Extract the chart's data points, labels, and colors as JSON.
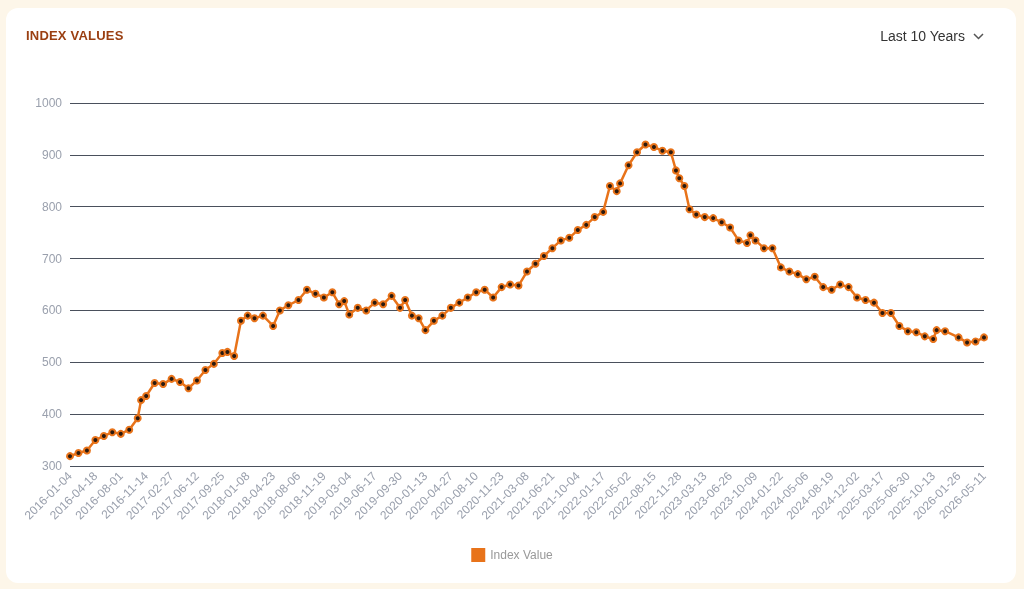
{
  "chart_data": {
    "type": "line",
    "title": "INDEX VALUES",
    "annotations": [
      "Last 10 Years"
    ],
    "x": [
      "2016-01-04",
      "2016-02-08",
      "2016-03-14",
      "2016-04-18",
      "2016-05-23",
      "2016-06-27",
      "2016-08-01",
      "2016-09-05",
      "2016-10-10",
      "2016-10-24",
      "2016-11-14",
      "2016-12-19",
      "2017-01-23",
      "2017-02-27",
      "2017-04-03",
      "2017-05-08",
      "2017-06-12",
      "2017-07-17",
      "2017-08-21",
      "2017-09-25",
      "2017-10-16",
      "2017-11-13",
      "2017-12-11",
      "2018-01-08",
      "2018-02-05",
      "2018-03-12",
      "2018-04-23",
      "2018-05-21",
      "2018-06-25",
      "2018-08-06",
      "2018-09-10",
      "2018-10-15",
      "2018-11-19",
      "2018-12-24",
      "2019-01-21",
      "2019-02-11",
      "2019-03-04",
      "2019-04-08",
      "2019-05-13",
      "2019-06-17",
      "2019-07-22",
      "2019-08-26",
      "2019-09-30",
      "2019-10-21",
      "2019-11-18",
      "2019-12-16",
      "2020-01-13",
      "2020-02-17",
      "2020-03-23",
      "2020-04-27",
      "2020-06-01",
      "2020-07-06",
      "2020-08-10",
      "2020-09-14",
      "2020-10-19",
      "2020-11-23",
      "2020-12-28",
      "2021-02-01",
      "2021-03-08",
      "2021-04-12",
      "2021-05-17",
      "2021-06-21",
      "2021-07-26",
      "2021-08-30",
      "2021-10-04",
      "2021-11-08",
      "2021-12-13",
      "2022-01-17",
      "2022-02-14",
      "2022-03-14",
      "2022-03-28",
      "2022-05-02",
      "2022-06-06",
      "2022-07-11",
      "2022-08-15",
      "2022-09-19",
      "2022-10-24",
      "2022-11-14",
      "2022-11-28",
      "2022-12-19",
      "2023-01-09",
      "2023-02-06",
      "2023-03-13",
      "2023-04-17",
      "2023-05-22",
      "2023-06-26",
      "2023-07-31",
      "2023-09-04",
      "2023-09-18",
      "2023-10-09",
      "2023-11-13",
      "2023-12-18",
      "2024-01-22",
      "2024-02-26",
      "2024-04-01",
      "2024-05-06",
      "2024-06-10",
      "2024-07-15",
      "2024-08-19",
      "2024-09-23",
      "2024-10-28",
      "2024-12-02",
      "2025-01-06",
      "2025-02-10",
      "2025-03-17",
      "2025-04-21",
      "2025-05-26",
      "2025-06-30",
      "2025-08-04",
      "2025-09-08",
      "2025-10-13",
      "2025-10-27",
      "2025-12-01",
      "2026-01-26",
      "2026-03-02",
      "2026-04-06",
      "2026-05-11"
    ],
    "series": [
      {
        "name": "Index Value",
        "color": "#e8731a",
        "values": [
          319,
          325,
          330,
          350,
          358,
          365,
          362,
          370,
          392,
          427,
          435,
          460,
          458,
          468,
          462,
          450,
          465,
          485,
          497,
          518,
          520,
          512,
          580,
          590,
          585,
          590,
          570,
          600,
          610,
          620,
          640,
          632,
          625,
          635,
          612,
          618,
          592,
          605,
          600,
          615,
          612,
          628,
          605,
          620,
          590,
          585,
          562,
          580,
          590,
          605,
          615,
          625,
          635,
          640,
          625,
          645,
          650,
          648,
          675,
          690,
          705,
          720,
          735,
          740,
          755,
          765,
          780,
          790,
          840,
          830,
          845,
          880,
          905,
          920,
          915,
          908,
          905,
          870,
          855,
          840,
          795,
          785,
          780,
          778,
          770,
          760,
          735,
          730,
          745,
          735,
          720,
          720,
          683,
          675,
          670,
          660,
          665,
          645,
          640,
          650,
          645,
          625,
          620,
          615,
          595,
          595,
          570,
          560,
          558,
          550,
          545,
          562,
          560,
          548,
          538,
          540,
          548
        ]
      }
    ],
    "xlim": [
      "2016-01-04",
      "2026-05-11"
    ],
    "xticks": [
      "2016-01-04",
      "2016-04-18",
      "2016-08-01",
      "2016-11-14",
      "2017-02-27",
      "2017-06-12",
      "2017-09-25",
      "2018-01-08",
      "2018-04-23",
      "2018-08-06",
      "2018-11-19",
      "2019-03-04",
      "2019-06-17",
      "2019-09-30",
      "2020-01-13",
      "2020-04-27",
      "2020-08-10",
      "2020-11-23",
      "2021-03-08",
      "2021-06-21",
      "2021-10-04",
      "2022-01-17",
      "2022-05-02",
      "2022-08-15",
      "2022-11-28",
      "2023-03-13",
      "2023-06-26",
      "2023-10-09",
      "2024-01-22",
      "2024-05-06",
      "2024-08-19",
      "2024-12-02",
      "2025-03-17",
      "2025-06-30",
      "2025-10-13",
      "2026-01-26",
      "2026-05-11"
    ],
    "ylim": [
      300,
      1000
    ],
    "yticks": [
      300,
      400,
      500,
      600,
      700,
      800,
      900,
      1000
    ],
    "grid": "y",
    "legend": "bottom",
    "marker": "circle",
    "line_style": "solid"
  }
}
